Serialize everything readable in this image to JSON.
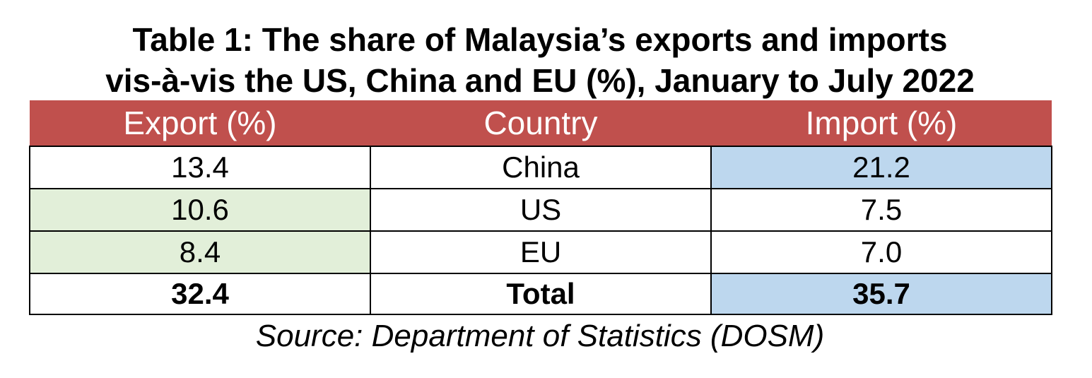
{
  "title": {
    "line1": "Table 1: The share of Malaysia’s exports and imports",
    "line2": "vis-à-vis the US, China and EU (%), January to July 2022"
  },
  "table": {
    "headers": [
      "Export (%)",
      "Country",
      "Import (%)"
    ],
    "rows": [
      [
        "13.4",
        "China",
        "21.2"
      ],
      [
        "10.6",
        "US",
        "7.5"
      ],
      [
        "8.4",
        "EU",
        "7.0"
      ]
    ],
    "total": [
      "32.4",
      "Total",
      "35.7"
    ]
  },
  "source": "Source: Department of Statistics (DOSM)",
  "colors": {
    "header_bg": "#c0504d",
    "header_text": "#ffffff",
    "export_highlight": "#e2efd9",
    "import_highlight": "#bdd7ee",
    "plain_cell": "#ffffff"
  },
  "cell_fills": [
    [
      "plain_cell",
      "plain_cell",
      "import_highlight"
    ],
    [
      "export_highlight",
      "plain_cell",
      "plain_cell"
    ],
    [
      "export_highlight",
      "plain_cell",
      "plain_cell"
    ],
    [
      "plain_cell",
      "plain_cell",
      "import_highlight"
    ]
  ]
}
